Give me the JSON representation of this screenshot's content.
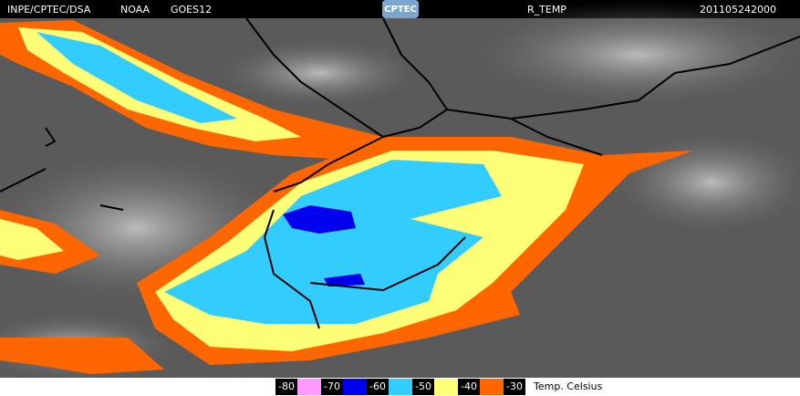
{
  "header": {
    "source": "INPE/CPTEC/DSA",
    "agency": "NOAA",
    "satellite": "GOES12",
    "logo": "CPTEC",
    "product": "R_TEMP",
    "timestamp": "201105242000"
  },
  "legend": {
    "items": [
      {
        "label": "-80",
        "color": "#ff99ff"
      },
      {
        "label": "-70",
        "color": "#0000ee"
      },
      {
        "label": "-60",
        "color": "#33ccff"
      },
      {
        "label": "-50",
        "color": "#ffff77"
      },
      {
        "label": "-40",
        "color": "#ff6600"
      },
      {
        "label": "-30"
      }
    ],
    "unit": "Temp. Celsius"
  }
}
